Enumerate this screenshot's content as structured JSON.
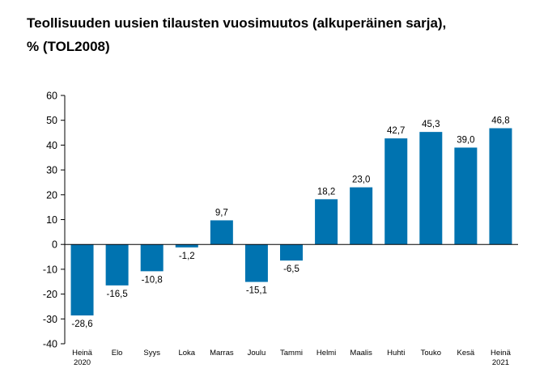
{
  "title": "Teollisuuden uusien tilausten vuosimuutos (alkuperäinen sarja),\n% (TOL2008)",
  "chart_data": {
    "type": "bar",
    "title": "Teollisuuden uusien tilausten vuosimuutos (alkuperäinen sarja), % (TOL2008)",
    "categories": [
      [
        "Heinä",
        "2020"
      ],
      [
        "Elo"
      ],
      [
        "Syys"
      ],
      [
        "Loka"
      ],
      [
        "Marras"
      ],
      [
        "Joulu"
      ],
      [
        "Tammi"
      ],
      [
        "Helmi"
      ],
      [
        "Maalis"
      ],
      [
        "Huhti"
      ],
      [
        "Touko"
      ],
      [
        "Kesä"
      ],
      [
        "Heinä",
        "2021"
      ]
    ],
    "values": [
      -28.6,
      -16.5,
      -10.8,
      -1.2,
      9.7,
      -15.1,
      -6.5,
      18.2,
      23.0,
      42.7,
      45.3,
      39.0,
      46.8
    ],
    "value_labels": [
      "-28,6",
      "-16,5",
      "-10,8",
      "-1,2",
      "9,7",
      "-15,1",
      "-6,5",
      "18,2",
      "23,0",
      "42,7",
      "45,3",
      "39,0",
      "46,8"
    ],
    "yticks": [
      60,
      50,
      40,
      30,
      20,
      10,
      0,
      -10,
      -20,
      -30,
      -40
    ],
    "ylim": [
      -40,
      60
    ],
    "grid": false,
    "bar_color": "#0073b0"
  }
}
